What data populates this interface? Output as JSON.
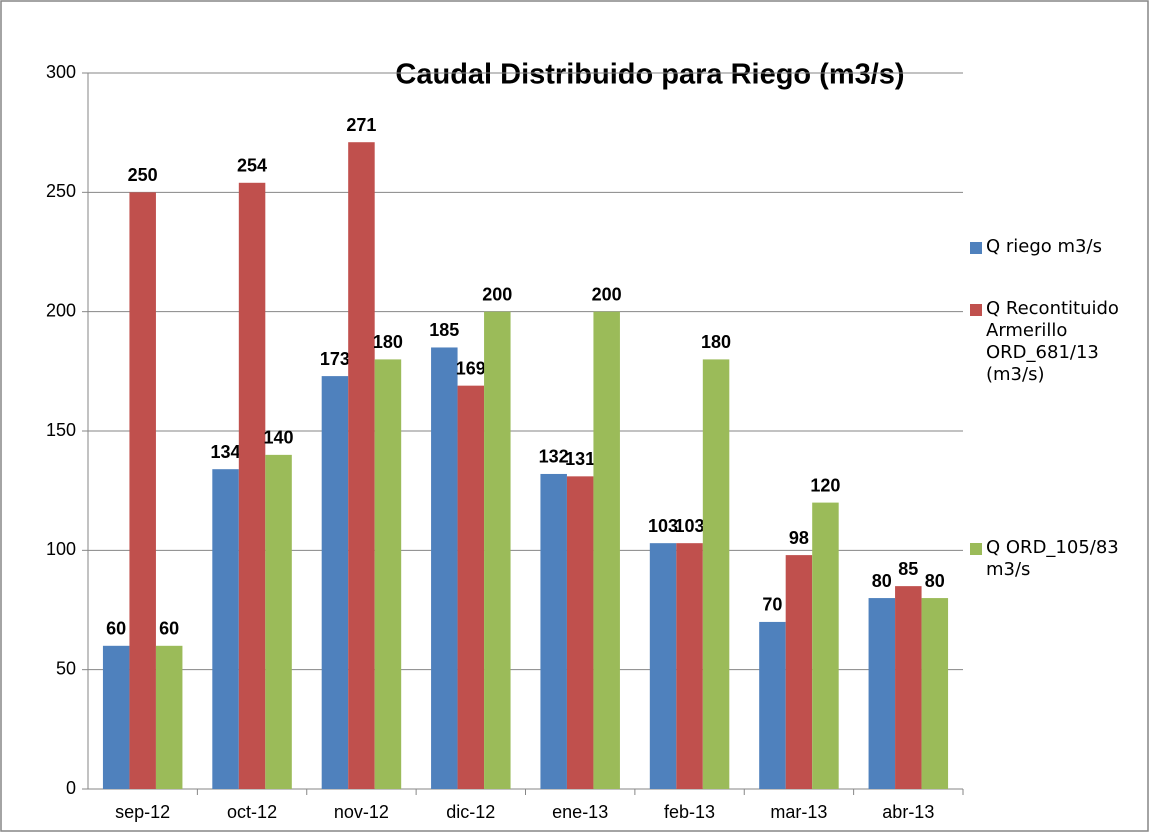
{
  "chart_data": {
    "type": "bar",
    "title": "Caudal  Distribuido para Riego (m3/s)",
    "categories": [
      "sep-12",
      "oct-12",
      "nov-12",
      "dic-12",
      "ene-13",
      "feb-13",
      "mar-13",
      "abr-13"
    ],
    "series": [
      {
        "name": "Q riego m3/s",
        "color": "#4f81bd",
        "values": [
          60,
          134,
          173,
          185,
          132,
          103,
          70,
          80
        ]
      },
      {
        "name": "Q Recontituido Armerillo ORD_681/13 (m3/s)",
        "color": "#c0504d",
        "values": [
          250,
          254,
          271,
          169,
          131,
          103,
          98,
          85
        ]
      },
      {
        "name": "Q ORD_105/83 m3/s",
        "color": "#9bbb59",
        "values": [
          60,
          140,
          180,
          200,
          200,
          180,
          120,
          80
        ]
      }
    ],
    "ylim": [
      0,
      300
    ],
    "yticks": [
      0,
      50,
      100,
      150,
      200,
      250,
      300
    ],
    "grid": true,
    "legend": "right"
  }
}
